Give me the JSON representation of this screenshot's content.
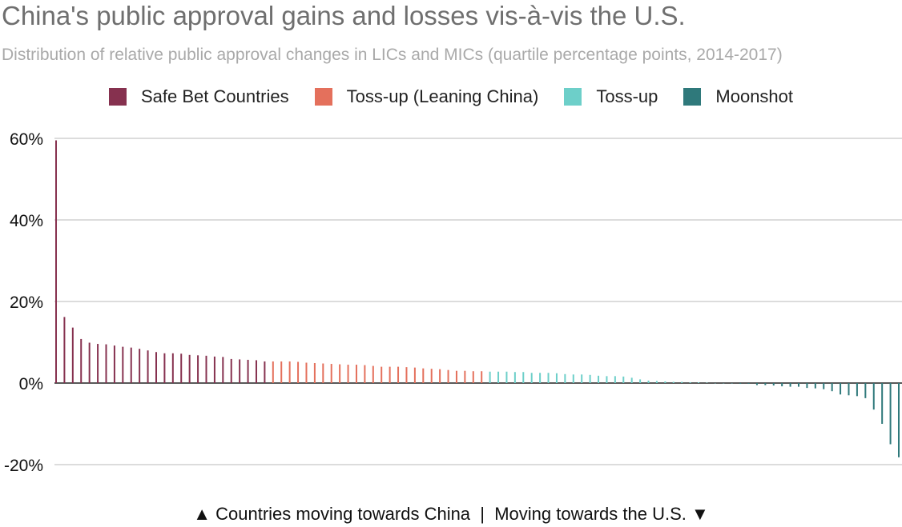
{
  "title": "China's public approval gains and losses vis-à-vis the U.S.",
  "subtitle": "Distribution of relative public approval changes in LICs and MICs (quartile percentage points, 2014-2017)",
  "footer": "▲ Countries moving towards China  |  Moving towards the U.S. ▼",
  "legend": [
    {
      "label": "Safe Bet Countries",
      "color": "#86314f"
    },
    {
      "label": "Toss-up (Leaning China)",
      "color": "#e4705c"
    },
    {
      "label": "Toss-up",
      "color": "#6dcfc9"
    },
    {
      "label": "Moonshot",
      "color": "#2f797b"
    }
  ],
  "chart_data": {
    "type": "bar",
    "ylim": [
      -30,
      60
    ],
    "yticks": [
      60,
      40,
      20,
      0,
      -20
    ],
    "ytick_labels": [
      "60%",
      "40%",
      "20%",
      "0%",
      "-20%"
    ],
    "grid": true,
    "legend_position": "top-center",
    "series": [
      {
        "name": "Safe Bet Countries",
        "color": "#86314f",
        "values": [
          59.5,
          16.2,
          13.6,
          10.8,
          9.9,
          9.6,
          9.5,
          9.2,
          8.9,
          8.7,
          8.4,
          8.0,
          7.6,
          7.3,
          7.3,
          7.2,
          6.9,
          6.8,
          6.7,
          6.5,
          6.4,
          5.9,
          5.8,
          5.7,
          5.6,
          5.3
        ]
      },
      {
        "name": "Toss-up (Leaning China)",
        "color": "#e4705c",
        "values": [
          5.3,
          5.3,
          5.3,
          5.2,
          5.0,
          4.9,
          4.8,
          4.7,
          4.6,
          4.5,
          4.5,
          4.4,
          4.2,
          4.0,
          4.0,
          4.0,
          3.9,
          3.8,
          3.6,
          3.5,
          3.4,
          3.2,
          3.0,
          3.0,
          2.9,
          2.9
        ]
      },
      {
        "name": "Toss-up",
        "color": "#6dcfc9",
        "values": [
          2.8,
          2.8,
          2.8,
          2.7,
          2.7,
          2.5,
          2.5,
          2.5,
          2.4,
          2.2,
          2.1,
          2.1,
          2.0,
          1.8,
          1.7,
          1.7,
          1.6,
          1.3,
          0.9,
          0.6,
          0.5,
          0.4,
          0.3,
          0.3,
          0.2,
          0.2,
          0.1
        ]
      },
      {
        "name": "Moonshot",
        "color": "#2f797b",
        "values": [
          -0.1,
          -0.1,
          -0.1,
          -0.2,
          -0.2,
          -0.5,
          -0.5,
          -0.6,
          -0.8,
          -0.9,
          -0.9,
          -1.2,
          -1.3,
          -1.5,
          -2.0,
          -2.8,
          -3.0,
          -3.2,
          -3.7,
          -6.5,
          -10.0,
          -15.0,
          -18.2
        ]
      }
    ]
  }
}
